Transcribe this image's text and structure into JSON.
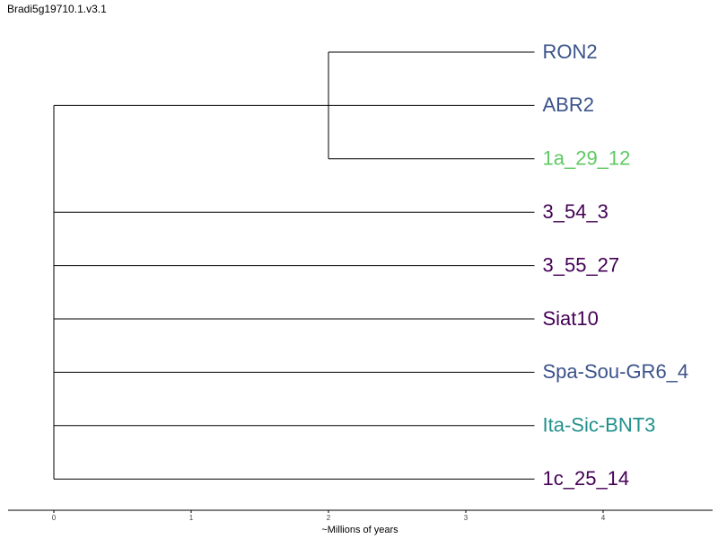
{
  "title": "Bradi5g19710.1.v3.1",
  "axis": {
    "label": "~Millions of years",
    "ticks": [
      0,
      1,
      2,
      3,
      4
    ],
    "range": [
      -0.33,
      4.8
    ]
  },
  "tree": {
    "root_age": 0,
    "clade_node_age": 2,
    "tip_age": 3.5,
    "tips": [
      {
        "name": "RON2",
        "color": "#3b528b",
        "parent": "clade"
      },
      {
        "name": "ABR2",
        "color": "#3b528b",
        "parent": "root"
      },
      {
        "name": "1a_29_12",
        "color": "#5ec962",
        "parent": "clade"
      },
      {
        "name": "3_54_3",
        "color": "#440154",
        "parent": "root"
      },
      {
        "name": "3_55_27",
        "color": "#440154",
        "parent": "root"
      },
      {
        "name": "Siat10",
        "color": "#440154",
        "parent": "root"
      },
      {
        "name": "Spa-Sou-GR6_4",
        "color": "#3b528b",
        "parent": "root"
      },
      {
        "name": "Ita-Sic-BNT3",
        "color": "#21918c",
        "parent": "root"
      },
      {
        "name": "1c_25_14",
        "color": "#440154",
        "parent": "root"
      }
    ]
  }
}
